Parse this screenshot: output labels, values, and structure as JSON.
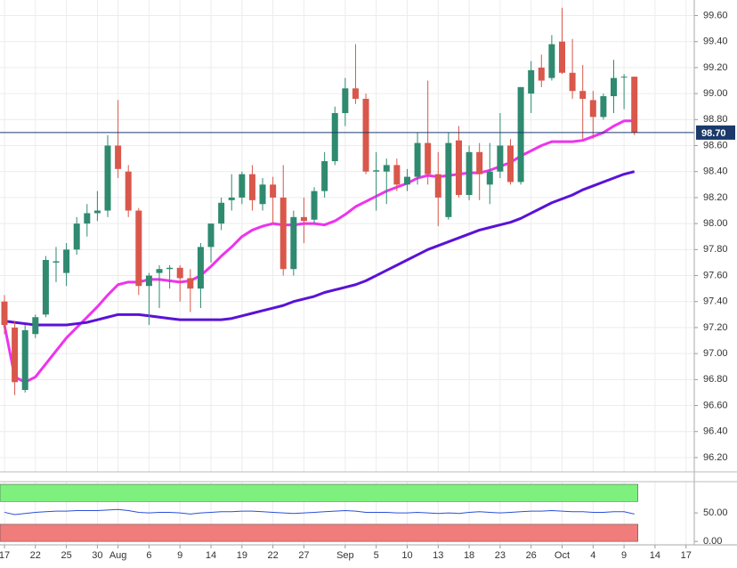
{
  "chart_data": [
    {
      "type": "candlestick",
      "open": [
        97.4,
        97.2,
        96.72,
        97.15,
        97.3,
        97.7,
        97.62,
        97.8,
        98.0,
        98.08,
        98.1,
        98.6,
        98.4,
        98.1,
        97.52,
        97.62,
        97.65,
        97.66,
        97.58,
        97.5,
        97.82,
        98.0,
        98.18,
        98.2,
        98.38,
        98.15,
        98.3,
        98.2,
        97.65,
        98.05,
        98.03,
        98.25,
        98.48,
        98.85,
        99.04,
        98.96,
        98.4,
        98.4,
        98.45,
        98.3,
        98.36,
        98.62,
        98.38,
        98.05,
        98.64,
        98.22,
        98.55,
        98.3,
        98.4,
        98.6,
        98.32,
        99.0,
        99.2,
        99.12,
        99.4,
        99.16,
        99.02,
        98.95,
        98.82,
        98.98,
        99.13,
        99.13
      ],
      "high": [
        97.45,
        97.25,
        97.22,
        97.3,
        97.75,
        97.82,
        97.85,
        98.05,
        98.15,
        98.25,
        98.68,
        98.95,
        98.45,
        98.12,
        97.62,
        97.68,
        97.68,
        97.68,
        97.65,
        97.85,
        98.0,
        98.2,
        98.38,
        98.4,
        98.45,
        98.35,
        98.36,
        98.45,
        98.1,
        98.2,
        98.28,
        98.55,
        98.9,
        99.12,
        99.38,
        99.0,
        98.55,
        98.5,
        98.5,
        98.42,
        98.7,
        99.1,
        98.55,
        98.7,
        98.75,
        98.6,
        98.62,
        98.62,
        98.85,
        98.65,
        99.05,
        99.25,
        99.3,
        99.45,
        99.66,
        99.42,
        99.22,
        99.02,
        99.0,
        99.26,
        99.15,
        99.13
      ],
      "low": [
        97.15,
        96.68,
        96.7,
        97.12,
        97.28,
        97.55,
        97.52,
        97.76,
        97.9,
        98.02,
        98.05,
        98.35,
        98.05,
        97.45,
        97.22,
        97.35,
        97.5,
        97.4,
        97.32,
        97.35,
        97.7,
        97.95,
        98.1,
        98.15,
        98.1,
        98.1,
        98.0,
        97.6,
        97.6,
        97.85,
        98.0,
        98.2,
        98.45,
        98.75,
        98.92,
        98.38,
        98.1,
        98.15,
        98.25,
        98.25,
        98.3,
        98.3,
        97.98,
        98.03,
        98.2,
        98.18,
        98.18,
        98.15,
        98.35,
        98.3,
        98.3,
        98.85,
        99.05,
        99.1,
        99.15,
        98.96,
        98.65,
        98.65,
        98.8,
        98.85,
        98.88,
        98.68
      ],
      "close": [
        97.22,
        96.78,
        97.18,
        97.28,
        97.72,
        97.71,
        97.8,
        98.0,
        98.08,
        98.1,
        98.6,
        98.42,
        98.1,
        97.52,
        97.6,
        97.65,
        97.66,
        97.58,
        97.5,
        97.82,
        98.0,
        98.16,
        98.2,
        98.38,
        98.18,
        98.3,
        98.2,
        97.65,
        98.05,
        98.02,
        98.25,
        98.48,
        98.85,
        99.04,
        98.96,
        98.4,
        98.41,
        98.45,
        98.3,
        98.36,
        98.62,
        98.38,
        98.2,
        98.62,
        98.22,
        98.55,
        98.38,
        98.4,
        98.6,
        98.32,
        99.05,
        99.18,
        99.1,
        99.38,
        99.16,
        99.02,
        98.96,
        98.82,
        98.98,
        99.12,
        99.13,
        98.7
      ],
      "up_color": "#2f8a70",
      "down_color": "#d9574b",
      "overlays": [
        {
          "color": "#ee33ee",
          "values": [
            97.22,
            96.82,
            96.78,
            96.82,
            96.92,
            97.02,
            97.12,
            97.2,
            97.28,
            97.36,
            97.45,
            97.53,
            97.55,
            97.55,
            97.57,
            97.57,
            97.56,
            97.55,
            97.56,
            97.6,
            97.67,
            97.75,
            97.82,
            97.9,
            97.95,
            97.98,
            98.0,
            97.99,
            97.99,
            98.0,
            98.0,
            97.99,
            98.02,
            98.07,
            98.13,
            98.17,
            98.21,
            98.25,
            98.28,
            98.31,
            98.35,
            98.37,
            98.36,
            98.37,
            98.38,
            98.39,
            98.39,
            98.41,
            98.44,
            98.47,
            98.52,
            98.56,
            98.6,
            98.63,
            98.63,
            98.63,
            98.64,
            98.67,
            98.7,
            98.75,
            98.79,
            98.79
          ]
        },
        {
          "color": "#5a12d8",
          "values": [
            97.25,
            97.24,
            97.23,
            97.22,
            97.22,
            97.22,
            97.22,
            97.23,
            97.24,
            97.26,
            97.28,
            97.3,
            97.3,
            97.3,
            97.29,
            97.28,
            97.27,
            97.26,
            97.26,
            97.26,
            97.26,
            97.26,
            97.27,
            97.29,
            97.31,
            97.33,
            97.35,
            97.37,
            97.4,
            97.42,
            97.44,
            97.47,
            97.49,
            97.51,
            97.53,
            97.56,
            97.6,
            97.64,
            97.68,
            97.72,
            97.76,
            97.8,
            97.83,
            97.86,
            97.89,
            97.92,
            97.95,
            97.97,
            97.99,
            98.01,
            98.04,
            98.08,
            98.12,
            98.16,
            98.19,
            98.22,
            98.26,
            98.29,
            98.32,
            98.35,
            98.38,
            98.4
          ]
        }
      ],
      "last_value_label": "98.70",
      "last_color": "#1b3a6b",
      "ylim": [
        96.09,
        99.72
      ],
      "yticks": [
        {
          "value": 96.2,
          "label": "96.20"
        },
        {
          "value": 96.4,
          "label": "96.40"
        },
        {
          "value": 96.6,
          "label": "96.60"
        },
        {
          "value": 96.8,
          "label": "96.80"
        },
        {
          "value": 97.0,
          "label": "97.00"
        },
        {
          "value": 97.2,
          "label": "97.20"
        },
        {
          "value": 97.4,
          "label": "97.40"
        },
        {
          "value": 97.6,
          "label": "97.60"
        },
        {
          "value": 97.8,
          "label": "97.80"
        },
        {
          "value": 98.0,
          "label": "98.00"
        },
        {
          "value": 98.2,
          "label": "98.20"
        },
        {
          "value": 98.4,
          "label": "98.40"
        },
        {
          "value": 98.6,
          "label": "98.60"
        },
        {
          "value": 98.8,
          "label": "98.80"
        },
        {
          "value": 99.0,
          "label": "99.00"
        },
        {
          "value": 99.2,
          "label": "99.20"
        },
        {
          "value": 99.4,
          "label": "99.40"
        },
        {
          "value": 99.6,
          "label": "99.60"
        }
      ],
      "xlim": [
        -0.43,
        66.8
      ],
      "xticks": [
        {
          "value": 0,
          "label": "17"
        },
        {
          "value": 3,
          "label": "22"
        },
        {
          "value": 6,
          "label": "25"
        },
        {
          "value": 9,
          "label": "30"
        },
        {
          "value": 11,
          "label": "Aug"
        },
        {
          "value": 14,
          "label": "6"
        },
        {
          "value": 17,
          "label": "9"
        },
        {
          "value": 20,
          "label": "14"
        },
        {
          "value": 23,
          "label": "19"
        },
        {
          "value": 26,
          "label": "22"
        },
        {
          "value": 29,
          "label": "27"
        },
        {
          "value": 33,
          "label": "Sep"
        },
        {
          "value": 36,
          "label": "5"
        },
        {
          "value": 39,
          "label": "10"
        },
        {
          "value": 42,
          "label": "13"
        },
        {
          "value": 45,
          "label": "18"
        },
        {
          "value": 48,
          "label": "23"
        },
        {
          "value": 51,
          "label": "26"
        },
        {
          "value": 54,
          "label": "Oct"
        },
        {
          "value": 57,
          "label": "4"
        },
        {
          "value": 60,
          "label": "9"
        },
        {
          "value": 63,
          "label": "14"
        },
        {
          "value": 66,
          "label": "17"
        }
      ],
      "grid": true
    },
    {
      "type": "line",
      "values": [
        51,
        47,
        49,
        51,
        52,
        53,
        53,
        54,
        54,
        54,
        55,
        56,
        54,
        51,
        50,
        51,
        51,
        50,
        48,
        50,
        51,
        52,
        52,
        53,
        53,
        52,
        51,
        50,
        49,
        50,
        51,
        52,
        53,
        54,
        53,
        51,
        51,
        51,
        50,
        50,
        51,
        50,
        49,
        50,
        49,
        51,
        52,
        51,
        50,
        51,
        52,
        53,
        53,
        54,
        53,
        52,
        52,
        51,
        51,
        52,
        52,
        48
      ],
      "color": "#2b50d8",
      "ylim": [
        -6,
        104.7
      ],
      "yticks": [
        {
          "value": 50,
          "label": "50.00"
        },
        {
          "value": 0,
          "label": "0.00"
        }
      ],
      "zones": [
        {
          "range": [
            70,
            100
          ],
          "color": "#7ef07e"
        },
        {
          "range": [
            0,
            30
          ],
          "color": "#f07c7c"
        }
      ]
    }
  ]
}
